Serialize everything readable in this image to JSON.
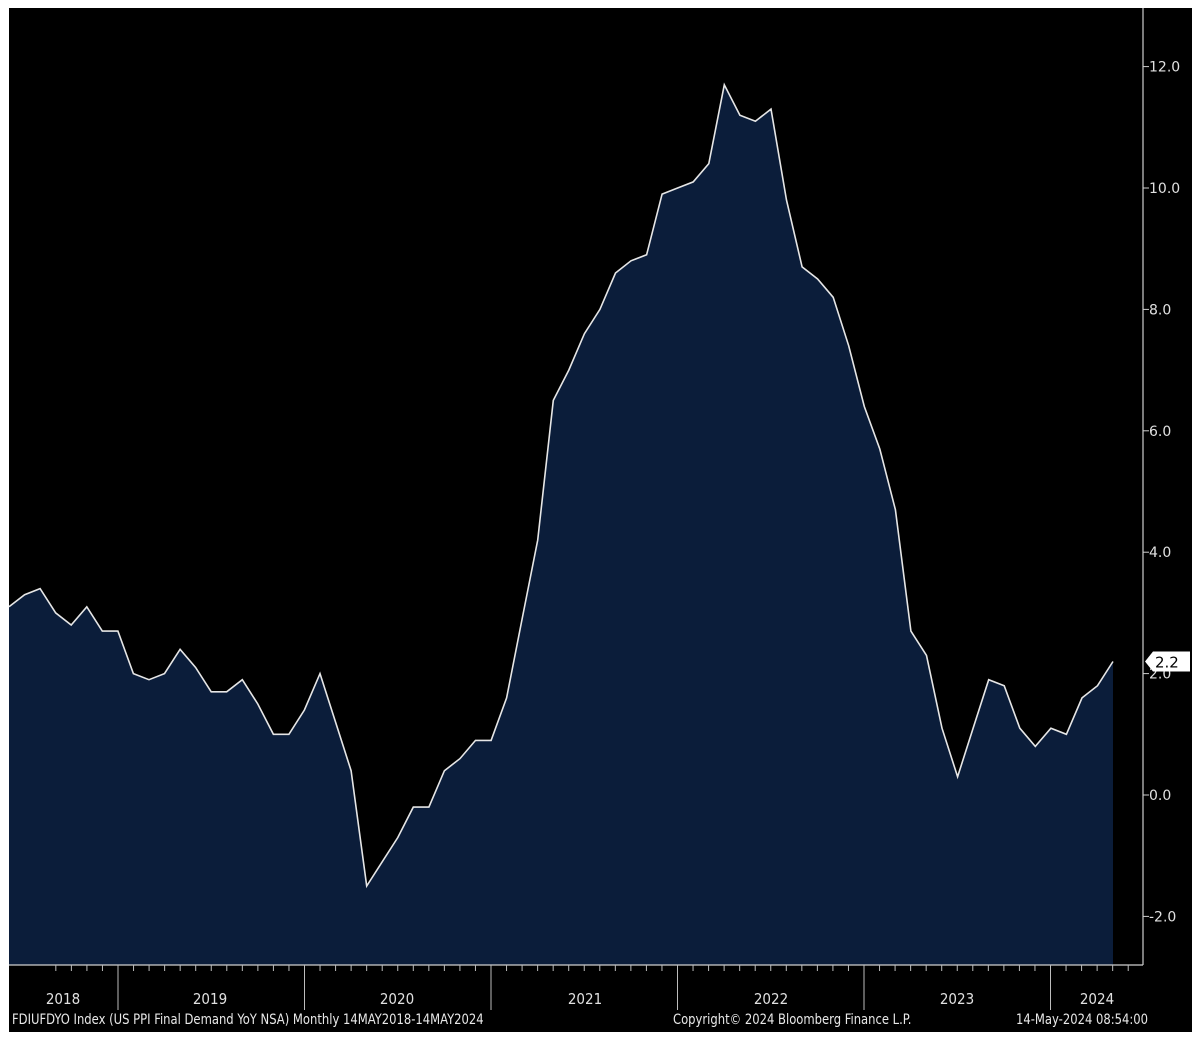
{
  "chart_data": {
    "type": "area",
    "title": "US PPI Final Demand YoY NSA",
    "ticker": "FDIUFDYO Index",
    "frequency": "Monthly",
    "x_start": "2018-05",
    "x_end": "2024-04",
    "ylim": [
      -2.8,
      12.9
    ],
    "yticks": [
      -2.0,
      0.0,
      2.0,
      4.0,
      6.0,
      8.0,
      10.0,
      12.0
    ],
    "ytick_labels": [
      "-2.0",
      "0.0",
      "2.0",
      "4.0",
      "6.0",
      "8.0",
      "10.0",
      "12.0"
    ],
    "xtick_labels": [
      "2018",
      "2019",
      "2020",
      "2021",
      "2022",
      "2023",
      "2024"
    ],
    "values": [
      3.1,
      3.3,
      3.4,
      3.0,
      2.8,
      3.1,
      2.7,
      2.7,
      2.0,
      1.9,
      2.0,
      2.4,
      2.1,
      1.7,
      1.7,
      1.9,
      1.5,
      1.0,
      1.0,
      1.4,
      2.0,
      1.2,
      0.4,
      -1.5,
      -1.1,
      -0.7,
      -0.2,
      -0.2,
      0.4,
      0.6,
      0.9,
      0.9,
      1.6,
      2.9,
      4.2,
      6.5,
      7.0,
      7.6,
      8.0,
      8.6,
      8.8,
      8.9,
      9.9,
      10.0,
      10.1,
      10.4,
      11.7,
      11.2,
      11.1,
      11.3,
      9.8,
      8.7,
      8.5,
      8.2,
      7.4,
      6.4,
      5.7,
      4.7,
      2.7,
      2.3,
      1.1,
      0.3,
      1.1,
      1.9,
      1.8,
      1.1,
      0.8,
      1.1,
      1.0,
      1.6,
      1.8,
      2.2
    ],
    "last_value_label": "2.2",
    "line_color": "#e6e6e6",
    "fill_color": "#0b1d3a",
    "background": "#000000",
    "legend": "none",
    "grid": false
  },
  "footer": {
    "description": "FDIUFDYO Index (US PPI Final Demand YoY NSA)  Monthly 14MAY2018-14MAY2024",
    "copyright": "Copyright© 2024 Bloomberg Finance L.P.",
    "timestamp": "14-May-2024 08:54:00"
  }
}
